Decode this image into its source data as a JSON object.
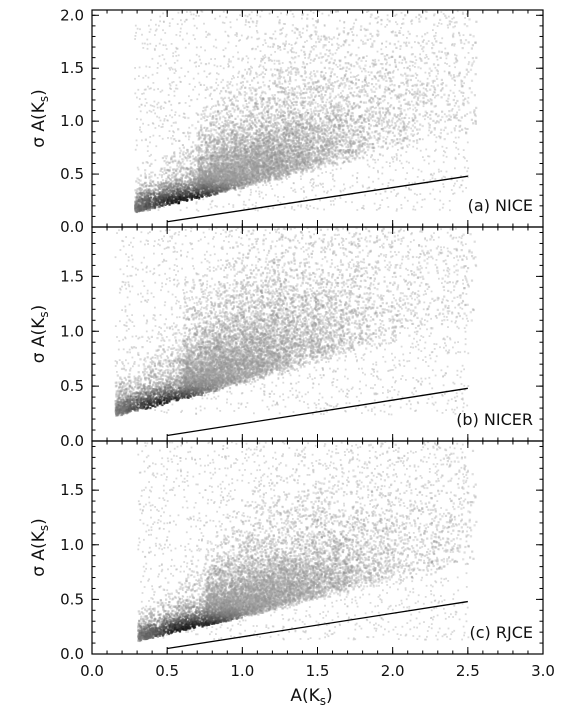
{
  "chart_data": {
    "type": "heatmap",
    "description_note": "",
    "x_axis": {
      "label_main": "A(K",
      "label_sub": "s",
      "label_close": ")",
      "range": [
        0.0,
        3.0
      ],
      "ticks": [
        "0.0",
        "0.5",
        "1.0",
        "1.5",
        "2.0",
        "2.5",
        "3.0"
      ]
    },
    "panels": [
      {
        "label": "(a) NICE",
        "y_label_main": "σ A(K",
        "y_label_sub": "s",
        "y_label_close": ")",
        "y_range": [
          0.0,
          2.05
        ],
        "y_ticks": [
          "0.0",
          "0.5",
          "1.0",
          "1.5",
          "2.0"
        ],
        "reference_line": {
          "x": [
            0.5,
            2.5
          ],
          "y": [
            0.05,
            0.48
          ]
        },
        "density": {
          "x_min": 0.28,
          "y_floor": 0.16,
          "slope": 0.28,
          "spread": 0.06,
          "spread_growth": 0.18,
          "peak_x": 0.7
        }
      },
      {
        "label": "(b) NICER",
        "y_label_main": "σ A(K",
        "y_label_sub": "s",
        "y_label_close": ")",
        "y_range": [
          0.0,
          1.95
        ],
        "y_ticks": [
          "0.0",
          "0.5",
          "1.0",
          "1.5"
        ],
        "reference_line": {
          "x": [
            0.5,
            2.5
          ],
          "y": [
            0.05,
            0.48
          ]
        },
        "density": {
          "x_min": 0.15,
          "y_floor": 0.25,
          "slope": 0.3,
          "spread": 0.07,
          "spread_growth": 0.2,
          "peak_x": 0.6
        }
      },
      {
        "label": "(c) RJCE",
        "y_label_main": "σ A(K",
        "y_label_sub": "s",
        "y_label_close": ")",
        "y_range": [
          0.0,
          1.95
        ],
        "y_ticks": [
          "0.0",
          "0.5",
          "1.0",
          "1.5"
        ],
        "reference_line": {
          "x": [
            0.5,
            2.5
          ],
          "y": [
            0.05,
            0.48
          ]
        },
        "density": {
          "x_min": 0.3,
          "y_floor": 0.14,
          "slope": 0.26,
          "spread": 0.05,
          "spread_growth": 0.16,
          "peak_x": 0.75
        }
      }
    ]
  }
}
